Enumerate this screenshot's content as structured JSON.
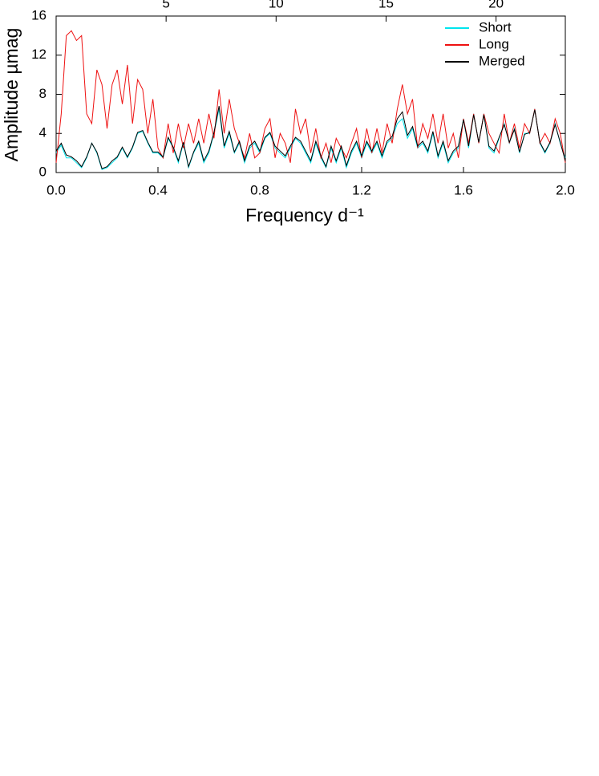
{
  "chart_data": {
    "type": "line",
    "xlabel": "Frequency d⁻¹",
    "ylabel": "Amplitude µmag",
    "xlim": [
      0,
      2
    ],
    "xticks": [
      {
        "value": 0,
        "label": "0.0"
      },
      0.4,
      0.8,
      1.2,
      1.6,
      {
        "value": 2,
        "label": "2.0"
      }
    ],
    "x2lim": [
      0,
      23.15
    ],
    "x2ticks": [
      5,
      10,
      15,
      20
    ],
    "ylim": [
      0,
      16
    ],
    "yticks": [
      0,
      4,
      8,
      12,
      16
    ],
    "grid": false,
    "legend": "upper right",
    "x": [
      0,
      0.02,
      0.04,
      0.06,
      0.08,
      0.1,
      0.12,
      0.14,
      0.16,
      0.18,
      0.2,
      0.22,
      0.24,
      0.26,
      0.28,
      0.3,
      0.32,
      0.34,
      0.36,
      0.38,
      0.4,
      0.42,
      0.44,
      0.46,
      0.48,
      0.5,
      0.52,
      0.54,
      0.56,
      0.58,
      0.6,
      0.62,
      0.64,
      0.66,
      0.68,
      0.7,
      0.72,
      0.74,
      0.76,
      0.78,
      0.8,
      0.82,
      0.84,
      0.86,
      0.88,
      0.9,
      0.92,
      0.94,
      0.96,
      0.98,
      1,
      1.02,
      1.04,
      1.06,
      1.08,
      1.1,
      1.12,
      1.14,
      1.16,
      1.18,
      1.2,
      1.22,
      1.24,
      1.26,
      1.28,
      1.3,
      1.32,
      1.34,
      1.36,
      1.38,
      1.4,
      1.42,
      1.44,
      1.46,
      1.48,
      1.5,
      1.52,
      1.54,
      1.56,
      1.58,
      1.6,
      1.62,
      1.64,
      1.66,
      1.68,
      1.7,
      1.72,
      1.74,
      1.76,
      1.78,
      1.8,
      1.82,
      1.84,
      1.86,
      1.88,
      1.9,
      1.92,
      1.94,
      1.96,
      1.98,
      2
    ],
    "series": [
      {
        "name": "Short",
        "color": "#00e5ee",
        "values": [
          2,
          2.8,
          1.5,
          1.5,
          1,
          0.5,
          1.5,
          3,
          2,
          0.3,
          0.5,
          1,
          1.5,
          2.5,
          1.5,
          2.5,
          4,
          4.2,
          3,
          2,
          2,
          1.5,
          3.5,
          2.5,
          1,
          3,
          0.5,
          2,
          3,
          1,
          2,
          4,
          6.5,
          2.5,
          4,
          2,
          3,
          1,
          2.5,
          3,
          2,
          3.5,
          4,
          2.5,
          2,
          1.5,
          2.5,
          3.5,
          3,
          2,
          1,
          3,
          1.5,
          0.5,
          2.5,
          1,
          2.5,
          0.5,
          2,
          3,
          1.5,
          3,
          2,
          3,
          1.5,
          3,
          3.5,
          5,
          5.5,
          3.5,
          4.5,
          2.5,
          3,
          2,
          4,
          1.5,
          3,
          1,
          2,
          2.5,
          5.5,
          2.5,
          6,
          3,
          6,
          2.5,
          2,
          3.5,
          5,
          3,
          4.5,
          2,
          4,
          4,
          6.5,
          3,
          2,
          3,
          5,
          3,
          1.5
        ]
      },
      {
        "name": "Long",
        "color": "#ee1111",
        "values": [
          1,
          6,
          14,
          14.5,
          13.5,
          14,
          6,
          5,
          10.5,
          9,
          4.5,
          9,
          10.5,
          7,
          11,
          5,
          9.5,
          8.5,
          4,
          7.5,
          2.5,
          1.5,
          5,
          2,
          5,
          2.5,
          5,
          3,
          5.5,
          3,
          6,
          3.5,
          8.5,
          4,
          7.5,
          4.5,
          3,
          1.5,
          4,
          1.5,
          2,
          4.5,
          5.5,
          1.5,
          4,
          3,
          1,
          6.5,
          4,
          5.5,
          2,
          4.5,
          1.5,
          3,
          1,
          3.5,
          2.5,
          1.5,
          3,
          4.5,
          1.5,
          4.5,
          2,
          4.5,
          2,
          5,
          3,
          6.5,
          9,
          6,
          7.5,
          2.5,
          5,
          3.5,
          6,
          3,
          6,
          2.5,
          4,
          1.5,
          5.5,
          3,
          6,
          3,
          6,
          4,
          3,
          2,
          6,
          3,
          5,
          2.5,
          5,
          4,
          6.5,
          3,
          4,
          3,
          5.5,
          4,
          1
        ]
      },
      {
        "name": "Merged",
        "color": "#000000",
        "values": [
          2.2,
          3,
          1.8,
          1.6,
          1.2,
          0.6,
          1.6,
          3,
          2.1,
          0.4,
          0.6,
          1.2,
          1.6,
          2.6,
          1.6,
          2.6,
          4.1,
          4.3,
          3.1,
          2.1,
          2.1,
          1.6,
          3.6,
          2.6,
          1.2,
          3.1,
          0.6,
          2.1,
          3.2,
          1.2,
          2.2,
          4.1,
          6.8,
          2.7,
          4.2,
          2.1,
          3.2,
          1.2,
          2.7,
          3.2,
          2.2,
          3.6,
          4.1,
          2.7,
          2.2,
          1.7,
          2.7,
          3.6,
          3.2,
          2.2,
          1.2,
          3.2,
          1.7,
          0.6,
          2.7,
          1.2,
          2.7,
          0.7,
          2.2,
          3.2,
          1.7,
          3.2,
          2.2,
          3.2,
          1.7,
          3.2,
          3.7,
          5.5,
          6.2,
          3.8,
          4.7,
          2.7,
          3.2,
          2.2,
          4.2,
          1.7,
          3.2,
          1.2,
          2.2,
          2.7,
          5.4,
          2.7,
          5.9,
          3.1,
          5.9,
          2.7,
          2.2,
          3.6,
          4.9,
          3.1,
          4.4,
          2.1,
          3.9,
          4.1,
          6.4,
          3.1,
          2.1,
          3.1,
          4.9,
          3.1,
          1.2
        ]
      }
    ]
  }
}
